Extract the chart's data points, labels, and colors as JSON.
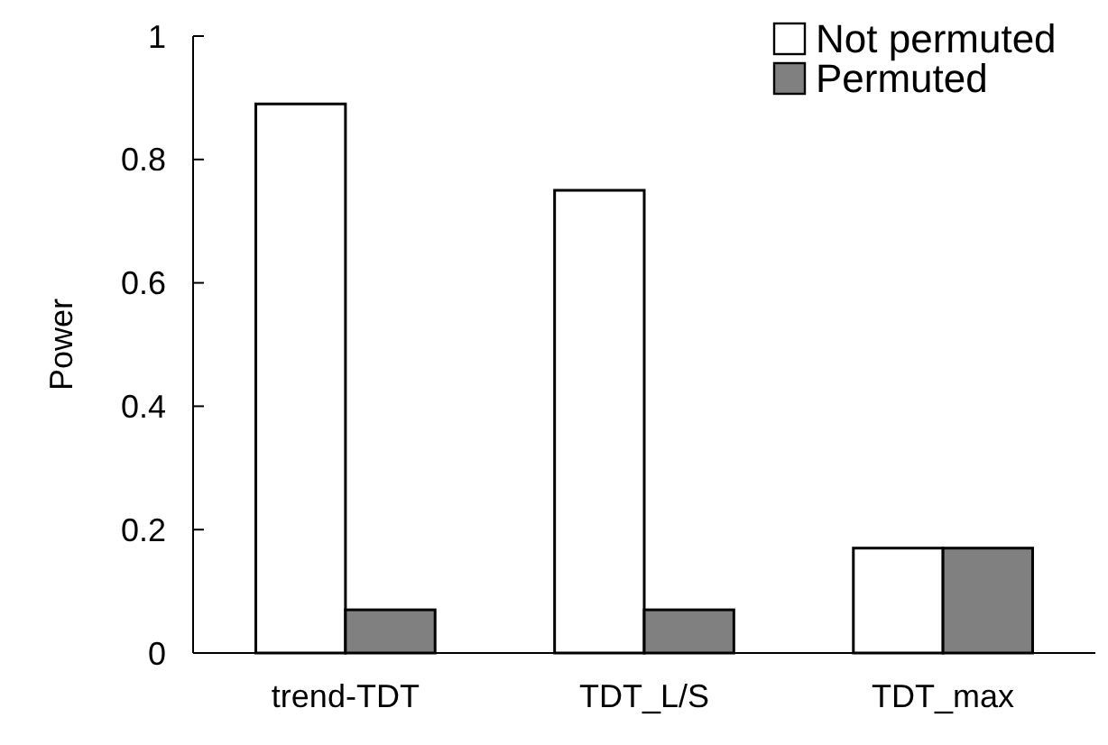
{
  "chart_data": {
    "type": "bar",
    "ylabel": "Power",
    "categories": [
      "trend-TDT",
      "TDT_L/S",
      "TDT_max"
    ],
    "series": [
      {
        "name": "Not permuted",
        "color": "#ffffff",
        "values": [
          0.89,
          0.75,
          0.17
        ]
      },
      {
        "name": "Permuted",
        "color": "#808080",
        "values": [
          0.07,
          0.07,
          0.17
        ]
      }
    ],
    "ylim": [
      0,
      1
    ],
    "yticks": [
      0,
      0.2,
      0.4,
      0.6,
      0.8,
      1
    ],
    "legend": "top right",
    "grid": false
  }
}
